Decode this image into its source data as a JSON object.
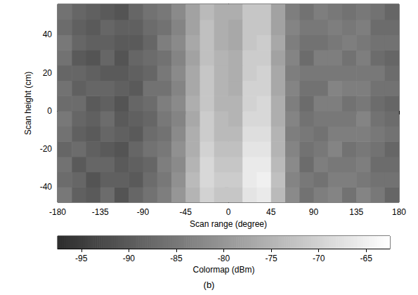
{
  "chart_data": {
    "type": "heatmap",
    "subtitle": "(b)",
    "x_label": "Scan range (degree)",
    "y_label": "Scan height (cm)",
    "xlim": [
      -180,
      180
    ],
    "xticks": [
      -180,
      -135,
      -90,
      -45,
      0,
      45,
      90,
      135,
      180
    ],
    "ylim": [
      -48,
      56
    ],
    "yticks": [
      -40,
      -20,
      0,
      20,
      40
    ],
    "grid": false,
    "x": [
      -172.5,
      -157.5,
      -142.5,
      -127.5,
      -112.5,
      -97.5,
      -82.5,
      -67.5,
      -52.5,
      -37.5,
      -22.5,
      -7.5,
      7.5,
      22.5,
      37.5,
      52.5,
      67.5,
      82.5,
      97.5,
      112.5,
      127.5,
      142.5,
      157.5,
      172.5
    ],
    "y": [
      -44,
      -36,
      -28,
      -20,
      -12,
      -4,
      4,
      12,
      20,
      28,
      36,
      44,
      52
    ],
    "cells": [
      [
        -85,
        -89,
        -90,
        -87,
        -91,
        -88,
        -86,
        -84,
        -80,
        -75,
        -70,
        -72,
        -72,
        -67,
        -66,
        -74,
        -82,
        -86,
        -84,
        -83,
        -86,
        -83,
        -85,
        -88
      ],
      [
        -87,
        -88,
        -91,
        -89,
        -89,
        -90,
        -87,
        -85,
        -81,
        -74,
        -69,
        -71,
        -71,
        -66,
        -65,
        -73,
        -83,
        -85,
        -86,
        -84,
        -84,
        -85,
        -86,
        -86
      ],
      [
        -86,
        -90,
        -88,
        -88,
        -90,
        -89,
        -88,
        -84,
        -82,
        -75,
        -69,
        -72,
        -72,
        -66,
        -66,
        -74,
        -82,
        -87,
        -84,
        -85,
        -85,
        -84,
        -87,
        -87
      ],
      [
        -88,
        -87,
        -89,
        -90,
        -91,
        -88,
        -86,
        -85,
        -81,
        -76,
        -70,
        -73,
        -73,
        -67,
        -67,
        -75,
        -83,
        -86,
        -85,
        -83,
        -86,
        -85,
        -86,
        -88
      ],
      [
        -86,
        -89,
        -90,
        -88,
        -89,
        -90,
        -87,
        -86,
        -82,
        -76,
        -71,
        -74,
        -74,
        -68,
        -68,
        -75,
        -84,
        -85,
        -86,
        -84,
        -84,
        -84,
        -85,
        -86
      ],
      [
        -85,
        -88,
        -89,
        -87,
        -90,
        -89,
        -88,
        -85,
        -83,
        -77,
        -71,
        -74,
        -75,
        -69,
        -69,
        -76,
        -83,
        -86,
        -85,
        -85,
        -85,
        -83,
        -86,
        -87
      ],
      [
        -87,
        -87,
        -90,
        -89,
        -91,
        -88,
        -87,
        -84,
        -82,
        -76,
        -72,
        -75,
        -75,
        -70,
        -69,
        -76,
        -84,
        -87,
        -84,
        -84,
        -86,
        -85,
        -87,
        -88
      ],
      [
        -86,
        -89,
        -88,
        -88,
        -89,
        -90,
        -86,
        -86,
        -83,
        -77,
        -72,
        -75,
        -76,
        -70,
        -70,
        -77,
        -83,
        -86,
        -86,
        -83,
        -84,
        -84,
        -86,
        -86
      ],
      [
        -88,
        -88,
        -89,
        -90,
        -90,
        -89,
        -88,
        -85,
        -82,
        -77,
        -72,
        -75,
        -76,
        -71,
        -70,
        -77,
        -84,
        -85,
        -85,
        -85,
        -85,
        -85,
        -85,
        -87
      ],
      [
        -86,
        -90,
        -91,
        -88,
        -91,
        -88,
        -87,
        -86,
        -83,
        -78,
        -73,
        -75,
        -76,
        -71,
        -71,
        -78,
        -83,
        -87,
        -84,
        -84,
        -86,
        -84,
        -87,
        -88
      ],
      [
        -85,
        -88,
        -89,
        -89,
        -90,
        -90,
        -88,
        -84,
        -82,
        -77,
        -73,
        -76,
        -77,
        -72,
        -71,
        -77,
        -84,
        -86,
        -86,
        -85,
        -84,
        -85,
        -86,
        -86
      ],
      [
        -87,
        -89,
        -90,
        -88,
        -89,
        -89,
        -87,
        -86,
        -83,
        -78,
        -73,
        -76,
        -77,
        -72,
        -72,
        -78,
        -83,
        -85,
        -85,
        -84,
        -85,
        -84,
        -87,
        -87
      ],
      [
        -86,
        -88,
        -89,
        -90,
        -91,
        -88,
        -86,
        -85,
        -82,
        -78,
        -74,
        -76,
        -76,
        -72,
        -72,
        -78,
        -84,
        -86,
        -84,
        -85,
        -86,
        -85,
        -86,
        -88
      ]
    ],
    "colorbar": {
      "label": "Colormap (dBm)",
      "lim": [
        -97.5,
        -62.5
      ],
      "ticks": [
        -95,
        -90,
        -85,
        -80,
        -75,
        -70,
        -65
      ]
    }
  }
}
